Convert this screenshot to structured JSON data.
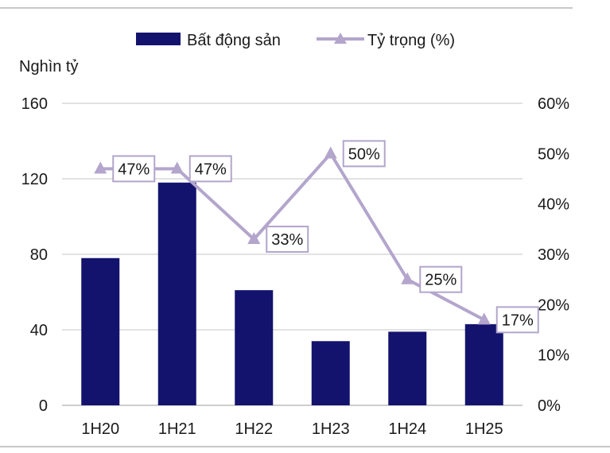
{
  "chart_data": {
    "type": "bar+line",
    "categories": [
      "1H20",
      "1H21",
      "1H22",
      "1H23",
      "1H24",
      "1H25"
    ],
    "series": [
      {
        "name": "Bất động sản",
        "type": "bar",
        "axis": "left",
        "color": "#13136e",
        "values": [
          78,
          118,
          61,
          34,
          39,
          43
        ]
      },
      {
        "name": "Tỷ trọng (%)",
        "type": "line",
        "axis": "right",
        "color": "#b3a5cc",
        "marker": "triangle",
        "values": [
          47,
          47,
          33,
          50,
          25,
          17
        ],
        "labels": [
          "47%",
          "47%",
          "33%",
          "50%",
          "25%",
          "17%"
        ]
      }
    ],
    "ylabel_left": "Nghìn tỷ",
    "ylim_left": [
      0,
      160
    ],
    "yticks_left": [
      "0",
      "40",
      "80",
      "120",
      "160"
    ],
    "ylim_right": [
      0,
      60
    ],
    "yticks_right": [
      "0%",
      "10%",
      "20%",
      "30%",
      "40%",
      "50%",
      "60%"
    ],
    "legend_position": "top-center",
    "grid": true
  }
}
